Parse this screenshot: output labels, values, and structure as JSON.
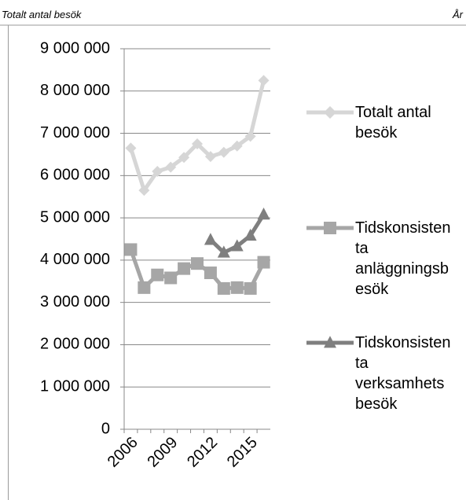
{
  "chart_data": {
    "type": "line",
    "y_label": "Totalt antal besök",
    "x_label": "År",
    "x": [
      2006,
      2007,
      2008,
      2009,
      2010,
      2011,
      2012,
      2013,
      2014,
      2015,
      2016
    ],
    "xlim": [
      2005.5,
      2016.5
    ],
    "xticks": [
      2006,
      2009,
      2012,
      2015
    ],
    "ylim": [
      0,
      9000000
    ],
    "yticks": [
      0,
      {
        "value": 1000000,
        "label": "1 000 000"
      },
      {
        "value": 2000000,
        "label": "2 000 000"
      },
      {
        "value": 3000000,
        "label": "3 000 000"
      },
      {
        "value": 4000000,
        "label": "4 000 000"
      },
      {
        "value": 5000000,
        "label": "5 000 000"
      },
      {
        "value": 6000000,
        "label": "6 000 000"
      },
      {
        "value": 7000000,
        "label": "7 000 000"
      },
      {
        "value": 8000000,
        "label": "8 000 000"
      },
      {
        "value": 9000000,
        "label": "9 000 000"
      }
    ],
    "grid": true,
    "legend": "right",
    "series": [
      {
        "name": "Totalt antal besök",
        "color": "#d6d6d6",
        "marker": "diamond",
        "values": [
          6650000,
          5650000,
          6100000,
          6200000,
          6430000,
          6750000,
          6450000,
          6550000,
          6700000,
          6930000,
          8250000
        ]
      },
      {
        "name": "Tidskonsistenta anläggningsbesök",
        "color": "#a6a6a6",
        "marker": "square",
        "values": [
          4250000,
          3350000,
          3650000,
          3580000,
          3800000,
          3920000,
          3700000,
          3330000,
          3350000,
          3330000,
          3950000
        ]
      },
      {
        "name": "Tidskonsistenta verksamhetsbesök",
        "color": "#7f7f7f",
        "marker": "triangle",
        "values": [
          null,
          null,
          null,
          null,
          null,
          null,
          4480000,
          4180000,
          4330000,
          4580000,
          5080000
        ]
      }
    ]
  }
}
